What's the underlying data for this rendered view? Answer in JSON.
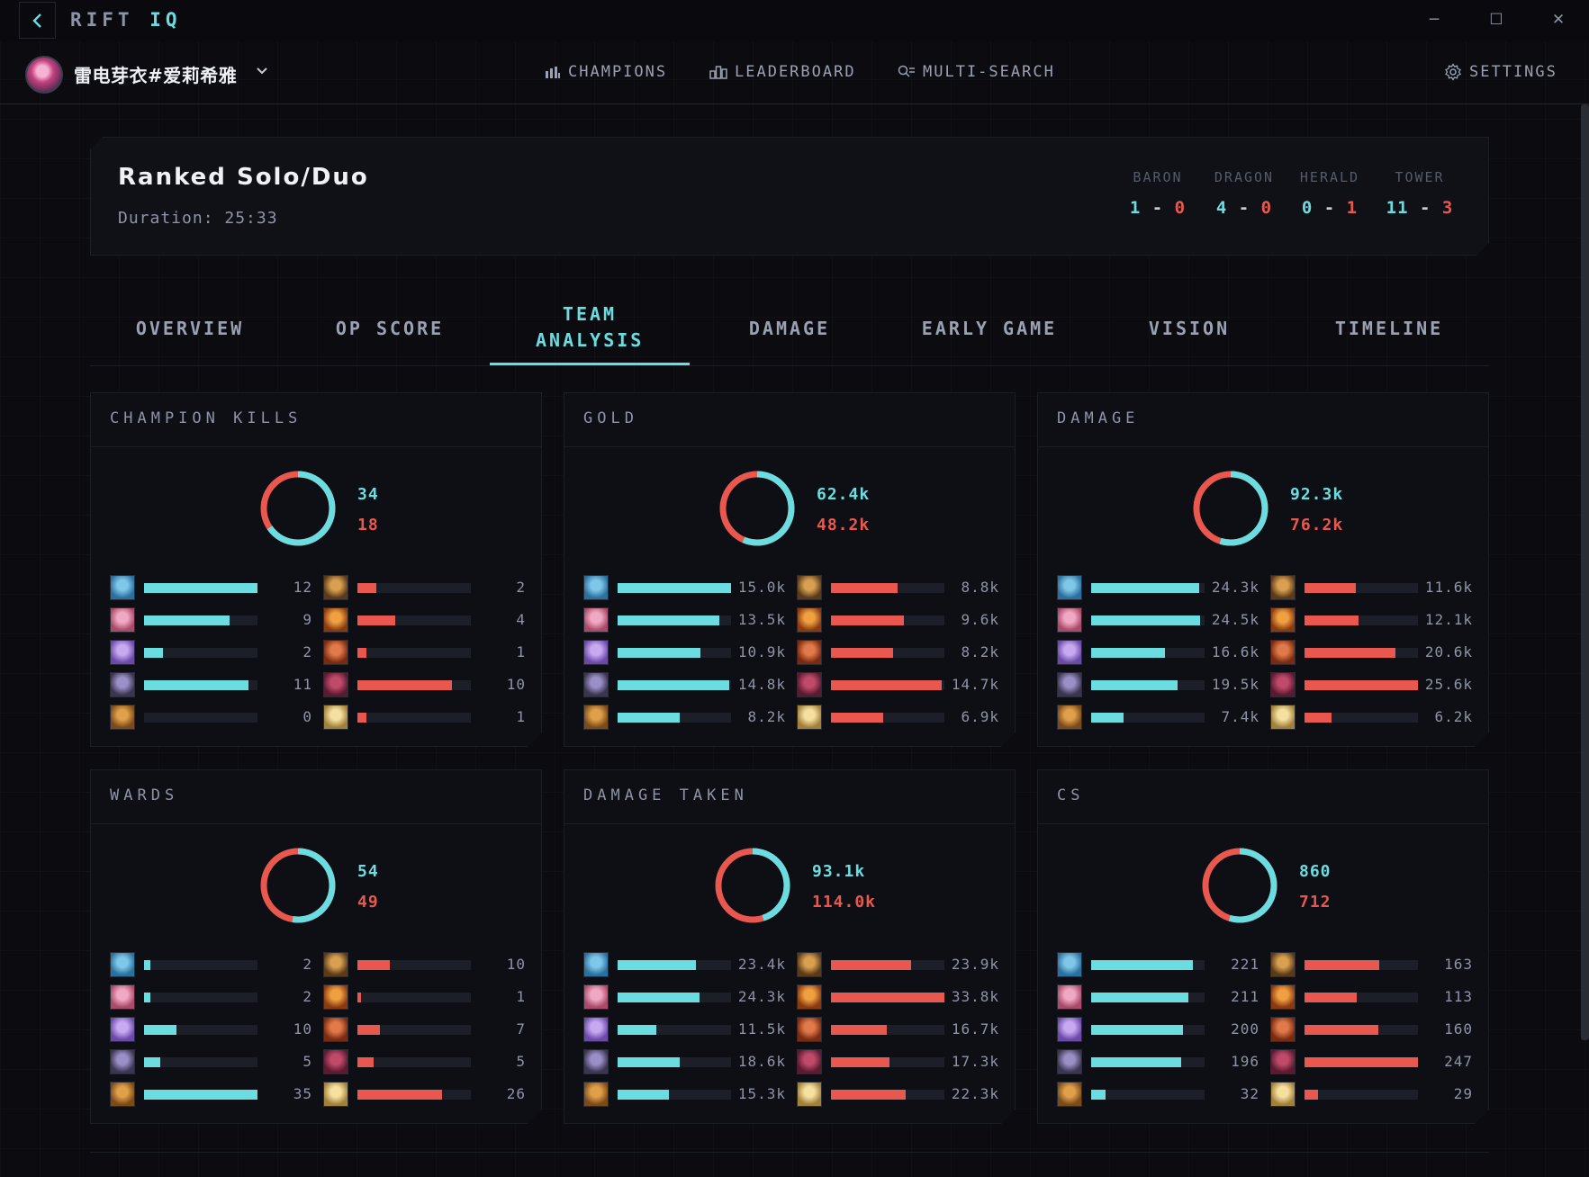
{
  "app": {
    "brand_main": "RIFT",
    "brand_accent": "IQ"
  },
  "window_controls": {
    "minimize": "─",
    "maximize": "☐",
    "close": "✕"
  },
  "summoner": {
    "name": "雷电芽衣#爱莉希雅",
    "avatar_icon": "summoner-avatar"
  },
  "nav": {
    "champions": "CHAMPIONS",
    "leaderboard": "LEADERBOARD",
    "multi_search": "MULTI-SEARCH",
    "settings": "SETTINGS"
  },
  "match": {
    "title": "Ranked Solo/Duo",
    "duration": "Duration: 25:33",
    "objectives": [
      {
        "label": "BARON",
        "blue": "1",
        "red": "0"
      },
      {
        "label": "DRAGON",
        "blue": "4",
        "red": "0"
      },
      {
        "label": "HERALD",
        "blue": "0",
        "red": "1"
      },
      {
        "label": "TOWER",
        "blue": "11",
        "red": "3"
      }
    ]
  },
  "tabs": [
    {
      "label": "OVERVIEW",
      "active": false
    },
    {
      "label": "OP SCORE",
      "active": false
    },
    {
      "label": "TEAM ANALYSIS",
      "active": true
    },
    {
      "label": "DAMAGE",
      "active": false
    },
    {
      "label": "EARLY GAME",
      "active": false
    },
    {
      "label": "VISION",
      "active": false
    },
    {
      "label": "TIMELINE",
      "active": false
    }
  ],
  "colors": {
    "blue": "#6bdde0",
    "red": "#e8584e",
    "track": "#1d1f28"
  },
  "blue_champion_icons": [
    "ezreal-icon",
    "zyra-icon",
    "seraphine-icon",
    "evelynn-icon",
    "warwick-icon"
  ],
  "red_champion_icons": [
    "rell-icon",
    "gnar-icon",
    "volibear-icon",
    "vayne-icon",
    "sona-icon"
  ],
  "panels": [
    {
      "title": "CHAMPION KILLS",
      "blue_total": "34",
      "red_total": "18",
      "blue_share": 0.654,
      "blue": [
        {
          "label": "12",
          "fill": 1.0
        },
        {
          "label": "9",
          "fill": 0.75
        },
        {
          "label": "2",
          "fill": 0.167
        },
        {
          "label": "11",
          "fill": 0.917
        },
        {
          "label": "0",
          "fill": 0.0
        }
      ],
      "red": [
        {
          "label": "2",
          "fill": 0.167
        },
        {
          "label": "4",
          "fill": 0.333
        },
        {
          "label": "1",
          "fill": 0.083
        },
        {
          "label": "10",
          "fill": 0.833
        },
        {
          "label": "1",
          "fill": 0.083
        }
      ]
    },
    {
      "title": "GOLD",
      "blue_total": "62.4k",
      "red_total": "48.2k",
      "blue_share": 0.564,
      "blue": [
        {
          "label": "15.0k",
          "fill": 1.0
        },
        {
          "label": "13.5k",
          "fill": 0.9
        },
        {
          "label": "10.9k",
          "fill": 0.727
        },
        {
          "label": "14.8k",
          "fill": 0.987
        },
        {
          "label": "8.2k",
          "fill": 0.547
        }
      ],
      "red": [
        {
          "label": "8.8k",
          "fill": 0.587
        },
        {
          "label": "9.6k",
          "fill": 0.64
        },
        {
          "label": "8.2k",
          "fill": 0.547
        },
        {
          "label": "14.7k",
          "fill": 0.98
        },
        {
          "label": "6.9k",
          "fill": 0.46
        }
      ]
    },
    {
      "title": "DAMAGE",
      "blue_total": "92.3k",
      "red_total": "76.2k",
      "blue_share": 0.548,
      "blue": [
        {
          "label": "24.3k",
          "fill": 0.95
        },
        {
          "label": "24.5k",
          "fill": 0.957
        },
        {
          "label": "16.6k",
          "fill": 0.648
        },
        {
          "label": "19.5k",
          "fill": 0.762
        },
        {
          "label": "7.4k",
          "fill": 0.289
        }
      ],
      "red": [
        {
          "label": "11.6k",
          "fill": 0.453
        },
        {
          "label": "12.1k",
          "fill": 0.473
        },
        {
          "label": "20.6k",
          "fill": 0.805
        },
        {
          "label": "25.6k",
          "fill": 1.0
        },
        {
          "label": "6.2k",
          "fill": 0.242
        }
      ]
    },
    {
      "title": "WARDS",
      "blue_total": "54",
      "red_total": "49",
      "blue_share": 0.524,
      "blue": [
        {
          "label": "2",
          "fill": 0.057
        },
        {
          "label": "2",
          "fill": 0.057
        },
        {
          "label": "10",
          "fill": 0.286
        },
        {
          "label": "5",
          "fill": 0.143
        },
        {
          "label": "35",
          "fill": 1.0
        }
      ],
      "red": [
        {
          "label": "10",
          "fill": 0.286
        },
        {
          "label": "1",
          "fill": 0.029
        },
        {
          "label": "7",
          "fill": 0.2
        },
        {
          "label": "5",
          "fill": 0.143
        },
        {
          "label": "26",
          "fill": 0.743
        }
      ]
    },
    {
      "title": "DAMAGE TAKEN",
      "blue_total": "93.1k",
      "red_total": "114.0k",
      "blue_share": 0.45,
      "blue": [
        {
          "label": "23.4k",
          "fill": 0.692
        },
        {
          "label": "24.3k",
          "fill": 0.719
        },
        {
          "label": "11.5k",
          "fill": 0.34
        },
        {
          "label": "18.6k",
          "fill": 0.55
        },
        {
          "label": "15.3k",
          "fill": 0.453
        }
      ],
      "red": [
        {
          "label": "23.9k",
          "fill": 0.707
        },
        {
          "label": "33.8k",
          "fill": 1.0
        },
        {
          "label": "16.7k",
          "fill": 0.494
        },
        {
          "label": "17.3k",
          "fill": 0.512
        },
        {
          "label": "22.3k",
          "fill": 0.66
        }
      ]
    },
    {
      "title": "CS",
      "blue_total": "860",
      "red_total": "712",
      "blue_share": 0.547,
      "blue": [
        {
          "label": "221",
          "fill": 0.895
        },
        {
          "label": "211",
          "fill": 0.854
        },
        {
          "label": "200",
          "fill": 0.81
        },
        {
          "label": "196",
          "fill": 0.794
        },
        {
          "label": "32",
          "fill": 0.13
        }
      ],
      "red": [
        {
          "label": "163",
          "fill": 0.66
        },
        {
          "label": "113",
          "fill": 0.457
        },
        {
          "label": "160",
          "fill": 0.648
        },
        {
          "label": "247",
          "fill": 1.0
        },
        {
          "label": "29",
          "fill": 0.117
        }
      ]
    }
  ]
}
